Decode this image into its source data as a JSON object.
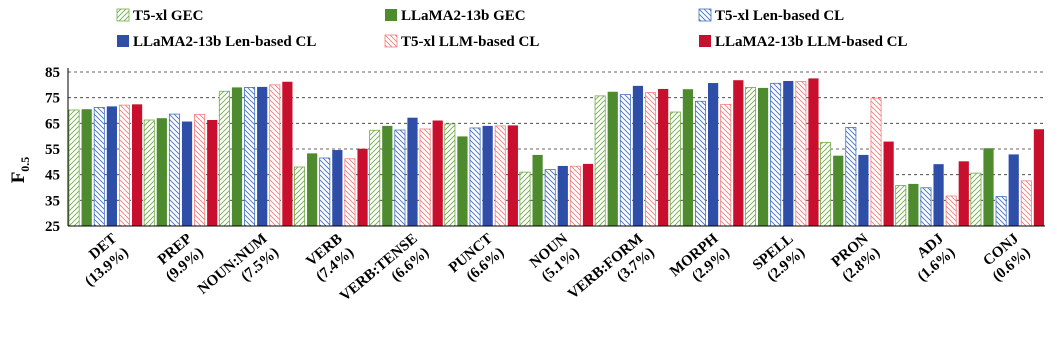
{
  "chart_data": {
    "type": "bar",
    "ylabel": "F",
    "ylabel_sub": "0.5",
    "ylim": [
      25,
      85
    ],
    "yticks": [
      25,
      35,
      45,
      55,
      65,
      75,
      85
    ],
    "grid": "horizontal dashed",
    "legend_position": "top",
    "categories": [
      {
        "name": "DET",
        "pct": "(13.9%)"
      },
      {
        "name": "PREP",
        "pct": "(9.9%)"
      },
      {
        "name": "NOUN:NUM",
        "pct": "(7.5%)"
      },
      {
        "name": "VERB",
        "pct": "(7.4%)"
      },
      {
        "name": "VERB:TENSE",
        "pct": "(6.6%)"
      },
      {
        "name": "PUNCT",
        "pct": "(6.6%)"
      },
      {
        "name": "NOUN",
        "pct": "(5.1%)"
      },
      {
        "name": "VERB:FORM",
        "pct": "(3.7%)"
      },
      {
        "name": "MORPH",
        "pct": "(2.9%)"
      },
      {
        "name": "SPELL",
        "pct": "(2.9%)"
      },
      {
        "name": "PRON",
        "pct": "(2.8%)"
      },
      {
        "name": "ADJ",
        "pct": "(1.6%)"
      },
      {
        "name": "CONJ",
        "pct": "(0.6%)"
      }
    ],
    "series": [
      {
        "name": "T5-xl GEC",
        "color": "#70AD47",
        "pattern": "hatch-forward",
        "values": [
          70.2,
          66.3,
          77.5,
          48.0,
          62.3,
          64.8,
          46.0,
          75.7,
          69.4,
          79.0,
          57.6,
          40.8,
          45.6
        ]
      },
      {
        "name": "LLaMA2-13b GEC",
        "color": "#4E8A2E",
        "pattern": "solid",
        "values": [
          70.5,
          67.0,
          79.0,
          53.3,
          64.0,
          59.9,
          52.7,
          77.3,
          78.3,
          78.8,
          52.4,
          41.4,
          55.3
        ]
      },
      {
        "name": "T5-xl Len-based CL",
        "color": "#4472C4",
        "pattern": "hatch-back",
        "values": [
          71.2,
          68.6,
          79.0,
          51.5,
          62.4,
          63.2,
          47.0,
          76.2,
          73.6,
          80.6,
          63.4,
          39.9,
          36.5
        ]
      },
      {
        "name": "LLaMA2-13b Len-based CL",
        "color": "#2F4EA8",
        "pattern": "solid",
        "values": [
          71.6,
          65.7,
          79.2,
          54.6,
          67.2,
          64.0,
          48.4,
          79.6,
          80.7,
          81.5,
          52.7,
          49.1,
          52.9
        ]
      },
      {
        "name": "T5-xl LLM-based CL",
        "color": "#F08080",
        "pattern": "hatch-back",
        "values": [
          72.1,
          68.5,
          80.0,
          51.2,
          62.8,
          64.0,
          48.3,
          77.0,
          72.4,
          81.3,
          74.8,
          36.7,
          42.6
        ]
      },
      {
        "name": "LLaMA2-13b LLM-based CL",
        "color": "#C8102E",
        "pattern": "solid",
        "values": [
          72.4,
          66.3,
          81.2,
          55.1,
          66.1,
          64.2,
          49.2,
          78.4,
          81.8,
          82.5,
          57.9,
          50.2,
          62.7
        ]
      }
    ]
  }
}
